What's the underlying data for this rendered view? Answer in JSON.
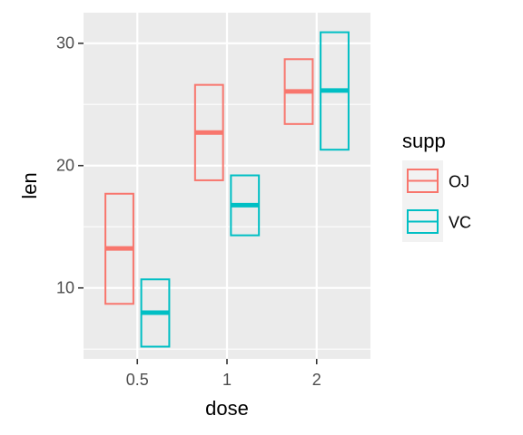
{
  "chart_data": {
    "type": "crossbar",
    "xlabel": "dose",
    "ylabel": "len",
    "categories": [
      "0.5",
      "1",
      "2"
    ],
    "yticks": [
      10,
      20,
      30
    ],
    "ylim": [
      4.2,
      32.5
    ],
    "grid": true,
    "legend": {
      "title": "supp",
      "placement": "right",
      "entries": [
        "OJ",
        "VC"
      ]
    },
    "series": [
      {
        "name": "OJ",
        "color": "#F8766D",
        "mid": [
          13.23,
          22.7,
          26.06
        ],
        "lower": [
          8.7,
          18.8,
          23.4
        ],
        "upper": [
          17.7,
          26.6,
          28.7
        ]
      },
      {
        "name": "VC",
        "color": "#00BFC4",
        "mid": [
          7.98,
          16.77,
          26.14
        ],
        "lower": [
          5.2,
          14.3,
          21.3
        ],
        "upper": [
          10.7,
          19.2,
          30.9
        ]
      }
    ]
  }
}
